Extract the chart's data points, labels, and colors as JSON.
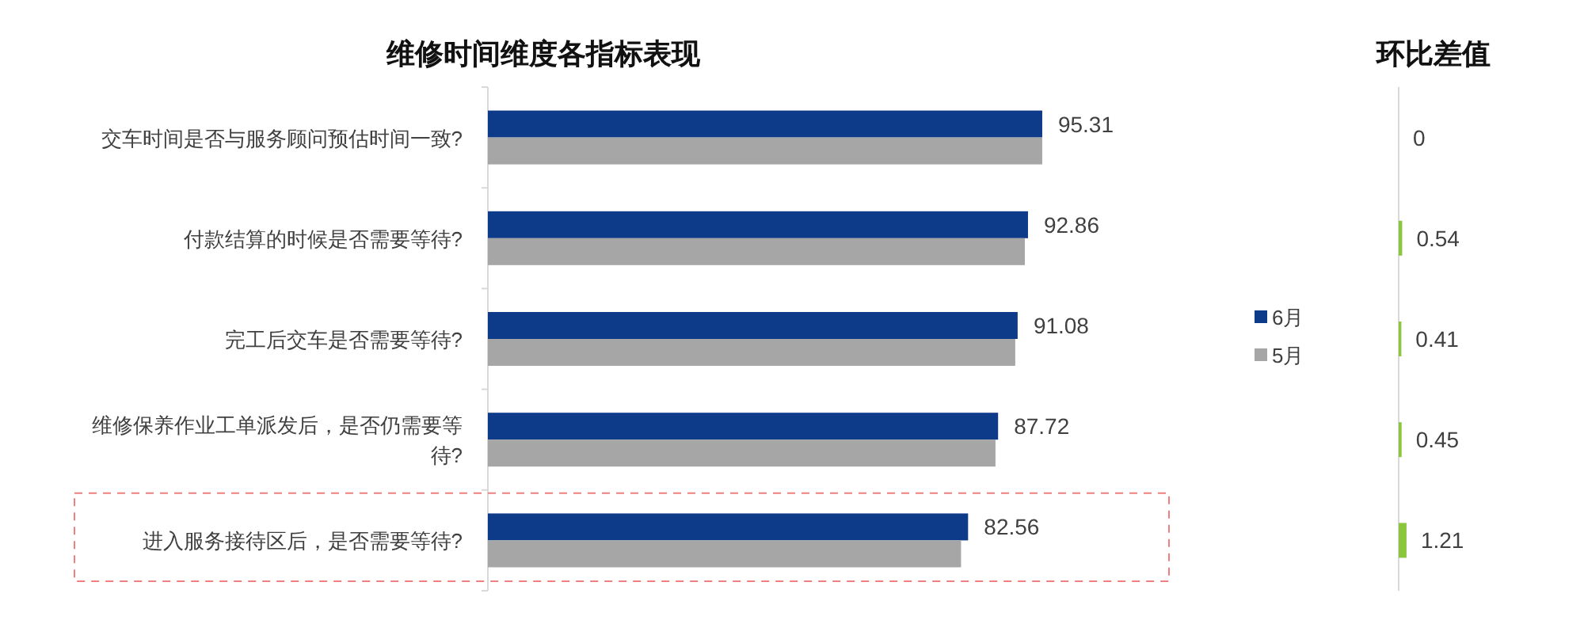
{
  "chart_data": [
    {
      "type": "bar",
      "orientation": "horizontal",
      "title": "维修时间维度各指标表现",
      "categories": [
        "交车时间是否与服务顾问预估时间一致?",
        "付款结算的时候是否需要等待?",
        "完工后交车是否需要等待?",
        "维修保养作业工单派发后，是否仍需要等待?",
        "进入服务接待区后，是否需要等待?"
      ],
      "series": [
        {
          "name": "6月",
          "color": "#0e3a8a",
          "values": [
            95.31,
            92.86,
            91.08,
            87.72,
            82.56
          ],
          "value_labels": [
            "95.31",
            "92.86",
            "91.08",
            "87.72",
            "82.56"
          ]
        },
        {
          "name": "5月",
          "color": "#a6a6a6",
          "values": [
            95.31,
            92.32,
            90.67,
            87.27,
            81.35
          ]
        }
      ],
      "tick_labels": "y",
      "legend": "right"
    },
    {
      "type": "bar",
      "orientation": "horizontal",
      "title": "环比差值",
      "categories": [
        null,
        null,
        null,
        null,
        null
      ],
      "values": [
        0,
        0.54,
        0.41,
        0.45,
        1.21
      ],
      "color": "#8cc63f",
      "data_labels": true,
      "tick_labels": false
    }
  ]
}
